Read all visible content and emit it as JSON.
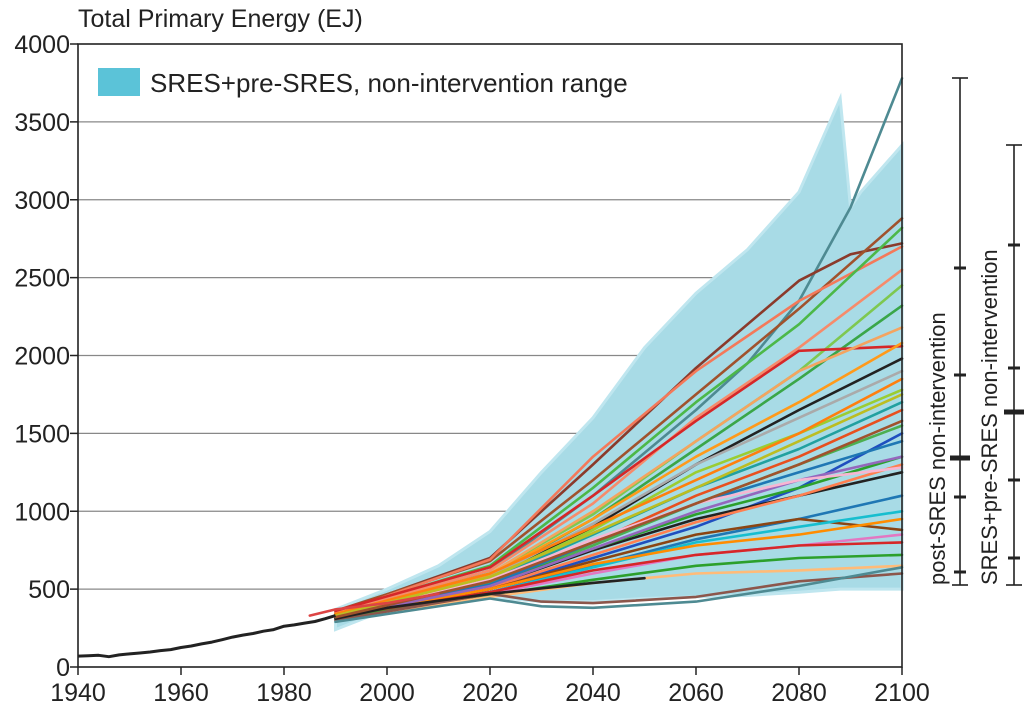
{
  "chart_data": {
    "type": "line",
    "title": "Total Primary Energy (EJ)",
    "xlabel": "",
    "ylabel": "",
    "xlim": [
      1940,
      2100
    ],
    "ylim": [
      0,
      4000
    ],
    "xticks": [
      "1940",
      "1960",
      "1980",
      "2000",
      "2020",
      "2040",
      "2060",
      "2080",
      "2100"
    ],
    "yticks": [
      "0",
      "500",
      "1000",
      "1500",
      "2000",
      "2500",
      "3000",
      "3500",
      "4000"
    ],
    "grid": true,
    "legend": {
      "position": "top-left",
      "label": "SRES+pre-SRES, non-intervention range"
    },
    "colors": {
      "band_fill": "#a8dbe6",
      "band_edge": "#bfe6ef",
      "legend_swatch": "#5bc3d8",
      "historical": "#222222",
      "grid": "#888888",
      "axis": "#222222"
    },
    "historical": {
      "x": [
        1940,
        1942,
        1944,
        1946,
        1948,
        1950,
        1952,
        1954,
        1956,
        1958,
        1960,
        1962,
        1964,
        1966,
        1968,
        1970,
        1972,
        1974,
        1976,
        1978,
        1980,
        1982,
        1984,
        1986,
        1988,
        1990
      ],
      "y": [
        70,
        72,
        75,
        66,
        78,
        84,
        90,
        96,
        105,
        112,
        125,
        135,
        148,
        160,
        175,
        192,
        205,
        215,
        230,
        240,
        262,
        270,
        282,
        292,
        310,
        330
      ]
    },
    "range_band": {
      "x": [
        1990,
        2000,
        2010,
        2020,
        2030,
        2040,
        2050,
        2060,
        2070,
        2080,
        2088,
        2090,
        2092,
        2100
      ],
      "upper": [
        370,
        500,
        650,
        870,
        1250,
        1600,
        2050,
        2400,
        2680,
        3050,
        3650,
        2950,
        3050,
        3350
      ],
      "lower": [
        240,
        370,
        470,
        450,
        420,
        420,
        440,
        450,
        460,
        480,
        500,
        500,
        500,
        500
      ]
    },
    "scenarios": [
      {
        "color": "#4e8a92",
        "x": [
          1990,
          2020,
          2040,
          2060,
          2070,
          2080,
          2090,
          2100
        ],
        "y": [
          340,
          620,
          1100,
          1650,
          1950,
          2350,
          2950,
          3780
        ]
      },
      {
        "color": "#8b3a2b",
        "x": [
          1990,
          2020,
          2040,
          2060,
          2080,
          2090,
          2100
        ],
        "y": [
          350,
          700,
          1300,
          1920,
          2480,
          2650,
          2720
        ]
      },
      {
        "color": "#a0522d",
        "x": [
          1990,
          2020,
          2040,
          2060,
          2080,
          2100
        ],
        "y": [
          360,
          680,
          1200,
          1750,
          2300,
          2880
        ]
      },
      {
        "color": "#f4795a",
        "x": [
          1990,
          2020,
          2040,
          2060,
          2080,
          2100
        ],
        "y": [
          340,
          690,
          1350,
          1900,
          2350,
          2700
        ]
      },
      {
        "color": "#4cb848",
        "x": [
          1990,
          2020,
          2040,
          2060,
          2080,
          2100
        ],
        "y": [
          350,
          650,
          1150,
          1700,
          2200,
          2820
        ]
      },
      {
        "color": "#f68b6b",
        "x": [
          1990,
          2020,
          2040,
          2060,
          2080,
          2100
        ],
        "y": [
          350,
          620,
          1050,
          1600,
          2050,
          2550
        ]
      },
      {
        "color": "#7ec850",
        "x": [
          1990,
          2020,
          2040,
          2060,
          2080,
          2100
        ],
        "y": [
          340,
          600,
          980,
          1450,
          1900,
          2450
        ]
      },
      {
        "color": "#3aa648",
        "x": [
          1990,
          2020,
          2040,
          2060,
          2080,
          2100
        ],
        "y": [
          330,
          580,
          950,
          1400,
          1850,
          2320
        ]
      },
      {
        "color": "#d62728",
        "x": [
          1990,
          2020,
          2040,
          2060,
          2080,
          2100
        ],
        "y": [
          360,
          640,
          1100,
          1580,
          2030,
          2060
        ]
      },
      {
        "color": "#f4a460",
        "x": [
          1990,
          2020,
          2040,
          2060,
          2080,
          2100
        ],
        "y": [
          340,
          600,
          1000,
          1450,
          1900,
          2180
        ]
      },
      {
        "color": "#222222",
        "x": [
          1990,
          2020,
          2040,
          2060,
          2080,
          2100
        ],
        "y": [
          330,
          560,
          900,
          1300,
          1650,
          1980
        ]
      },
      {
        "color": "#ff9a1a",
        "x": [
          1990,
          2020,
          2040,
          2060,
          2080,
          2100
        ],
        "y": [
          340,
          590,
          950,
          1350,
          1700,
          2080
        ]
      },
      {
        "color": "#aaaaaa",
        "x": [
          1990,
          2020,
          2040,
          2060,
          2080,
          2100
        ],
        "y": [
          330,
          580,
          920,
          1300,
          1600,
          1900
        ]
      },
      {
        "color": "#21a0a0",
        "x": [
          1990,
          2020,
          2040,
          2060,
          2080,
          2100
        ],
        "y": [
          330,
          560,
          850,
          1150,
          1400,
          1700
        ]
      },
      {
        "color": "#9acd32",
        "x": [
          1990,
          2020,
          2040,
          2060,
          2080,
          2100
        ],
        "y": [
          330,
          570,
          880,
          1250,
          1500,
          1780
        ]
      },
      {
        "color": "#1f4fbf",
        "x": [
          1990,
          2020,
          2040,
          2060,
          2080,
          2100
        ],
        "y": [
          300,
          500,
          700,
          900,
          1150,
          1500
        ]
      },
      {
        "color": "#e8501f",
        "x": [
          1990,
          2020,
          2040,
          2060,
          2080,
          2100
        ],
        "y": [
          320,
          540,
          800,
          1100,
          1350,
          1650
        ]
      },
      {
        "color": "#222222",
        "x": [
          1990,
          2020,
          2040,
          2060,
          2080,
          2100
        ],
        "y": [
          320,
          520,
          750,
          950,
          1100,
          1250
        ]
      },
      {
        "color": "#4caf50",
        "x": [
          1990,
          2020,
          2040,
          2060,
          2080,
          2100
        ],
        "y": [
          320,
          540,
          780,
          1050,
          1300,
          1550
        ]
      },
      {
        "color": "#ff7f50",
        "x": [
          1990,
          2020,
          2040,
          2060,
          2080,
          2100
        ],
        "y": [
          320,
          510,
          720,
          930,
          1100,
          1300
        ]
      },
      {
        "color": "#2ca02c",
        "x": [
          1990,
          2020,
          2040,
          2060,
          2080,
          2100
        ],
        "y": [
          330,
          530,
          760,
          980,
          1150,
          1350
        ]
      },
      {
        "color": "#1f77b4",
        "x": [
          1990,
          2020,
          2040,
          2060,
          2080,
          2100
        ],
        "y": [
          310,
          480,
          650,
          820,
          950,
          1100
        ]
      },
      {
        "color": "#8b4513",
        "x": [
          1990,
          2020,
          2040,
          2060,
          2080,
          2100
        ],
        "y": [
          310,
          500,
          680,
          850,
          950,
          880
        ]
      },
      {
        "color": "#17becf",
        "x": [
          1990,
          2020,
          2040,
          2060,
          2080,
          2100
        ],
        "y": [
          310,
          480,
          640,
          800,
          900,
          1000
        ]
      },
      {
        "color": "#ff8c00",
        "x": [
          1990,
          2020,
          2040,
          2060,
          2080,
          2100
        ],
        "y": [
          320,
          500,
          660,
          780,
          850,
          950
        ]
      },
      {
        "color": "#e377c2",
        "x": [
          1990,
          2020,
          2040,
          2060,
          2080,
          2100
        ],
        "y": [
          310,
          470,
          600,
          720,
          780,
          850
        ]
      },
      {
        "color": "#d62728",
        "x": [
          1990,
          2020,
          2040,
          2060,
          2080,
          2100
        ],
        "y": [
          320,
          480,
          620,
          720,
          780,
          800
        ]
      },
      {
        "color": "#2ca02c",
        "x": [
          1990,
          2020,
          2040,
          2060,
          2080,
          2100
        ],
        "y": [
          310,
          460,
          560,
          650,
          700,
          720
        ]
      },
      {
        "color": "#ffbb78",
        "x": [
          1990,
          2020,
          2040,
          2060,
          2080,
          2100
        ],
        "y": [
          300,
          450,
          540,
          600,
          620,
          650
        ]
      },
      {
        "color": "#8c564b",
        "x": [
          1990,
          2020,
          2030,
          2040,
          2060,
          2080,
          2100
        ],
        "y": [
          300,
          470,
          420,
          410,
          450,
          550,
          600
        ]
      },
      {
        "color": "#4e8a92",
        "x": [
          1990,
          2020,
          2030,
          2040,
          2060,
          2080,
          2100
        ],
        "y": [
          290,
          440,
          390,
          380,
          420,
          520,
          640
        ]
      },
      {
        "color": "#1f77b4",
        "x": [
          1990,
          2020,
          2040,
          2060,
          2080,
          2100
        ],
        "y": [
          330,
          530,
          800,
          1050,
          1250,
          1450
        ]
      },
      {
        "color": "#9467bd",
        "x": [
          1990,
          2020,
          2040,
          2060,
          2080,
          2100
        ],
        "y": [
          320,
          520,
          760,
          1000,
          1200,
          1350
        ]
      },
      {
        "color": "#f7b6d2",
        "x": [
          1990,
          2020,
          2040,
          2060,
          2080,
          2100
        ],
        "y": [
          330,
          560,
          820,
          1050,
          1200,
          1280
        ]
      },
      {
        "color": "#222222",
        "x": [
          1990,
          2000,
          2020,
          2040,
          2050
        ],
        "y": [
          310,
          380,
          470,
          540,
          570
        ]
      },
      {
        "color": "#ff7f0e",
        "x": [
          1990,
          2020,
          2040,
          2060,
          2080,
          2100
        ],
        "y": [
          340,
          600,
          900,
          1200,
          1500,
          1850
        ]
      },
      {
        "color": "#bcbd22",
        "x": [
          1990,
          2020,
          2040,
          2060,
          2080,
          2100
        ],
        "y": [
          330,
          580,
          860,
          1150,
          1450,
          1750
        ]
      },
      {
        "color": "#a0522d",
        "x": [
          1990,
          2020,
          2040,
          2060,
          2080,
          2100
        ],
        "y": [
          320,
          550,
          800,
          1050,
          1300,
          1580
        ]
      },
      {
        "color": "#dd4444",
        "x": [
          1985,
          1990,
          2000,
          2010
        ],
        "y": [
          330,
          370,
          410,
          470
        ]
      }
    ]
  },
  "side_ranges": [
    {
      "label": "post-SRES non-intervention"
    },
    {
      "label": "SRES+pre-SRES non-intervention"
    }
  ]
}
